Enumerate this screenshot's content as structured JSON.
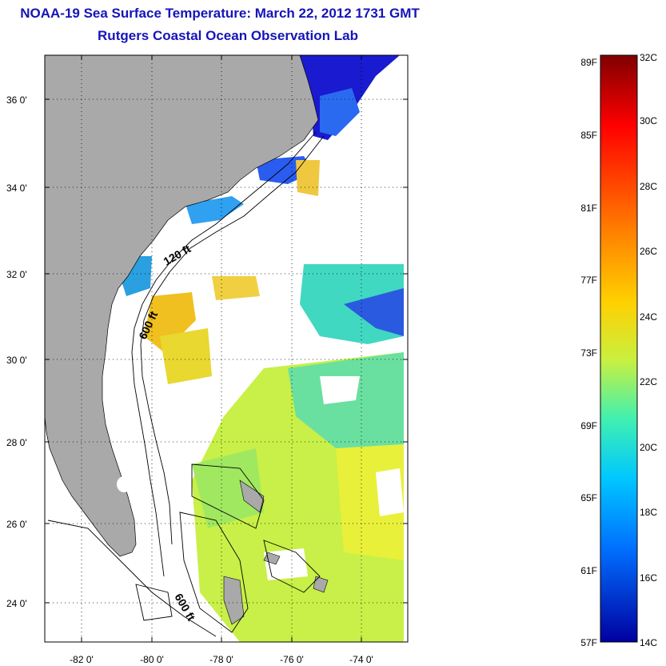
{
  "title": "NOAA-19 Sea Surface Temperature:  March 22, 2012 1731 GMT",
  "subtitle": "Rutgers Coastal Ocean Observation Lab",
  "map": {
    "lat_labels": [
      "36 0'",
      "34 0'",
      "32 0'",
      "30 0'",
      "28 0'",
      "26 0'",
      "24 0'"
    ],
    "lon_labels": [
      "-82 0'",
      "-80 0'",
      "-78 0'",
      "-76 0'",
      "-74 0'"
    ],
    "contour_labels": [
      "120 ft",
      "600 ft",
      "600 ft"
    ],
    "land_color": "#a9a9a9",
    "cloud_color": "#ffffff"
  },
  "colorbar": {
    "f_labels": [
      "89F",
      "85F",
      "81F",
      "77F",
      "73F",
      "69F",
      "65F",
      "61F",
      "57F"
    ],
    "c_labels": [
      "32C",
      "30C",
      "28C",
      "26C",
      "24C",
      "22C",
      "20C",
      "18C",
      "16C",
      "14C"
    ],
    "colors": [
      "#7f0000",
      "#ff0000",
      "#ff8000",
      "#ffe000",
      "#c0ff40",
      "#40ffc0",
      "#00c0ff",
      "#0060ff",
      "#0000b0"
    ]
  }
}
